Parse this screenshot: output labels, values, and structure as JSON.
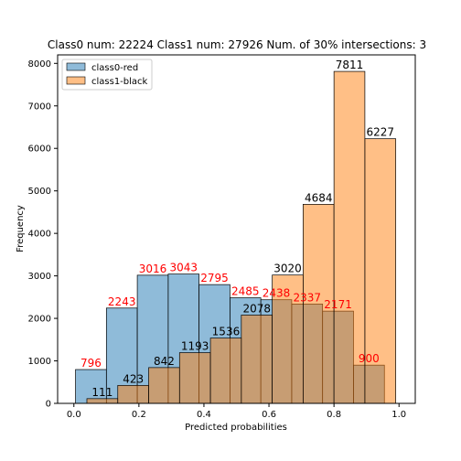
{
  "chart_data": {
    "type": "bar",
    "title": "Class0 num: 22224 Class1 num: 27926 Num. of 30% intersections: 3",
    "xlabel": "Predicted probabilities",
    "ylabel": "Frequency",
    "xlim": [
      -0.05,
      1.05
    ],
    "ylim": [
      0,
      8200
    ],
    "xticks": [
      "0.0",
      "0.2",
      "0.4",
      "0.6",
      "0.8",
      "1.0"
    ],
    "yticks": [
      "0",
      "1000",
      "2000",
      "3000",
      "4000",
      "5000",
      "6000",
      "7000",
      "8000"
    ],
    "bin_width": 0.095,
    "legend_position": "upper-left",
    "grid": false,
    "series": [
      {
        "name": "class0-red",
        "color": "#1f77b4",
        "label_color": "#ff0000",
        "bin_left": [
          0.005,
          0.1,
          0.195,
          0.29,
          0.385,
          0.48,
          0.575,
          0.67,
          0.765,
          0.86
        ],
        "values": [
          796,
          2243,
          3016,
          3043,
          2795,
          2485,
          2438,
          2337,
          2171,
          900
        ],
        "labels": [
          "796",
          "2243",
          "3016",
          "3043",
          "2795",
          "2485",
          "2438",
          "2337",
          "2171",
          "900"
        ]
      },
      {
        "name": "class1-black",
        "color": "#ff7f0e",
        "label_color": "#000000",
        "bin_left": [
          0.04,
          0.135,
          0.23,
          0.325,
          0.42,
          0.515,
          0.61,
          0.705,
          0.8,
          0.895
        ],
        "values": [
          111,
          423,
          842,
          1193,
          1536,
          2078,
          3020,
          4684,
          7811,
          6227
        ],
        "labels": [
          "111",
          "423",
          "842",
          "1193",
          "1536",
          "2078",
          "3020",
          "4684",
          "7811",
          "6227"
        ]
      }
    ]
  }
}
